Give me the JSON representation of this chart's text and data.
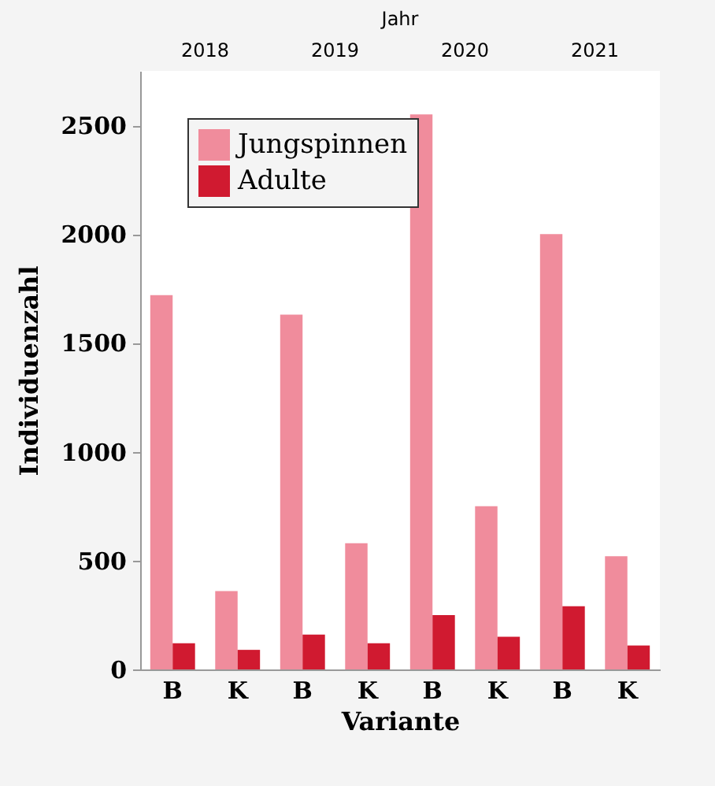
{
  "chart_data": {
    "type": "bar",
    "xlabel": "Variante",
    "ylabel": "Individuenzahl",
    "categories": [
      "B",
      "K",
      "B",
      "K",
      "B",
      "K",
      "B",
      "K"
    ],
    "series": [
      {
        "name": "Jungspinnen",
        "color": "#f08c9c",
        "values": [
          1720,
          360,
          1630,
          580,
          2550,
          750,
          2000,
          520
        ]
      },
      {
        "name": "Adulte",
        "color": "#d01a30",
        "values": [
          120,
          90,
          160,
          120,
          250,
          150,
          290,
          110
        ]
      }
    ],
    "ylim": [
      0,
      2750
    ],
    "yticks": [
      0,
      500,
      1000,
      1500,
      2000,
      2500
    ],
    "legend": "top left",
    "annotations": [
      "Jahr",
      "2018",
      "2019",
      "2020",
      "2021"
    ]
  }
}
